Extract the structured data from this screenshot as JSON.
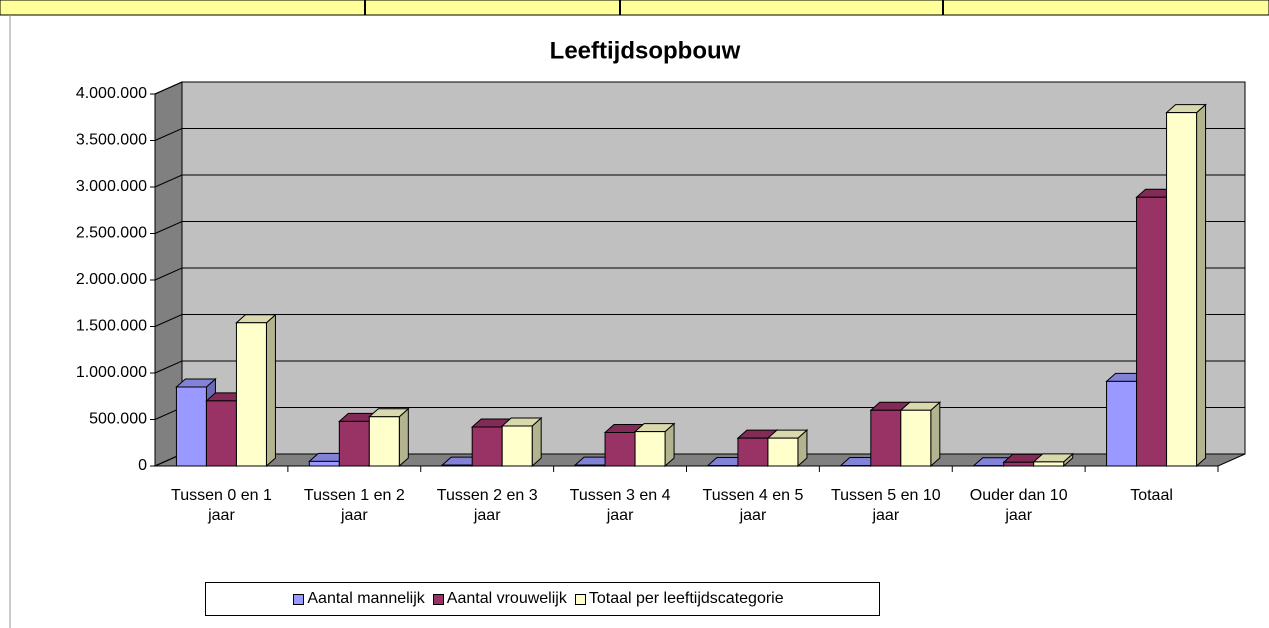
{
  "chart_data": {
    "type": "bar",
    "title": "Leeftijdsopbouw",
    "categories": [
      "Tussen 0 en 1 jaar",
      "Tussen 1 en 2 jaar",
      "Tussen 2 en 3 jaar",
      "Tussen 3 en 4 jaar",
      "Tussen 4 en 5 jaar",
      "Tussen 5 en 10 jaar",
      "Ouder dan 10 jaar",
      "Totaal"
    ],
    "series": [
      {
        "name": "Aantal mannelijk",
        "color": "#9999ff",
        "values": [
          850000,
          50000,
          10000,
          10000,
          5000,
          5000,
          3000,
          910000
        ]
      },
      {
        "name": "Aantal vrouwelijk",
        "color": "#993366",
        "values": [
          700000,
          480000,
          420000,
          360000,
          300000,
          600000,
          40000,
          2890000
        ]
      },
      {
        "name": "Totaal per leeftijdscategorie",
        "color": "#ffffcc",
        "values": [
          1540000,
          530000,
          430000,
          370000,
          300000,
          600000,
          45000,
          3800000
        ]
      }
    ],
    "ylim": [
      0,
      4000000
    ],
    "yticks": [
      0,
      {
        "value": 500000,
        "label": "500.000"
      },
      {
        "value": 1000000,
        "label": "1.000.000"
      },
      {
        "value": 1500000,
        "label": "1.500.000"
      },
      {
        "value": 2000000,
        "label": "2.000.000"
      },
      {
        "value": 2500000,
        "label": "2.500.000"
      },
      {
        "value": 3000000,
        "label": "3.000.000"
      },
      {
        "value": 3500000,
        "label": "3.500.000"
      },
      {
        "value": 4000000,
        "label": "4.000.000"
      }
    ],
    "grid": true,
    "legend": "bottom"
  }
}
